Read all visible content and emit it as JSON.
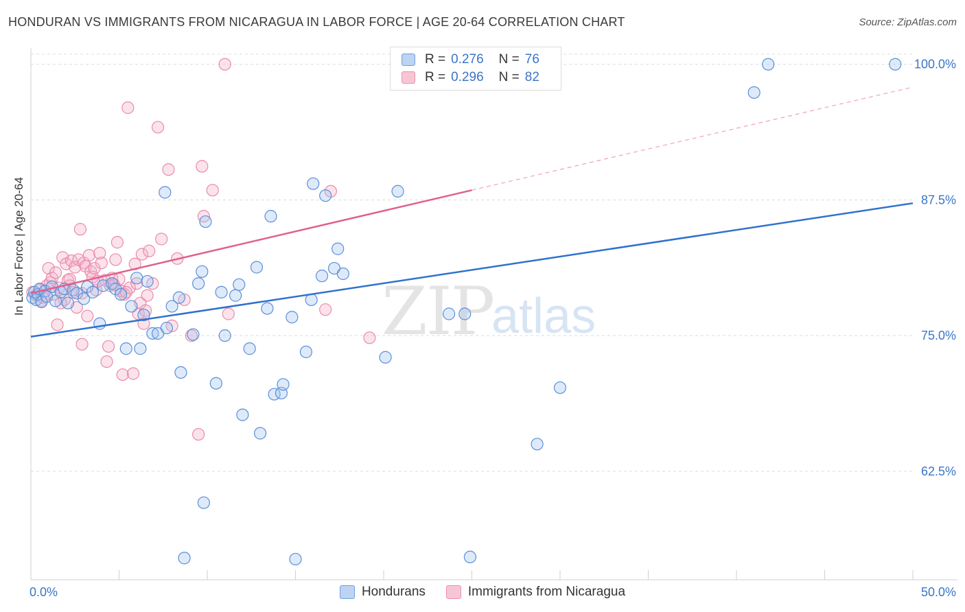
{
  "title": "HONDURAN VS IMMIGRANTS FROM NICARAGUA IN LABOR FORCE | AGE 20-64 CORRELATION CHART",
  "source": "Source: ZipAtlas.com",
  "watermark": {
    "part1": "ZIP",
    "part2": "atlas"
  },
  "legend": {
    "r_label": "R =",
    "n_label": "N =",
    "rows": [
      {
        "r": "0.276",
        "n": "76",
        "fill": "#bcd3f2",
        "stroke": "#6e9fe0"
      },
      {
        "r": "0.296",
        "n": "82",
        "fill": "#f7c6d5",
        "stroke": "#eb8fae"
      }
    ]
  },
  "bottom_legend": [
    {
      "label": "Hondurans",
      "fill": "#bcd3f2",
      "stroke": "#6e9fe0"
    },
    {
      "label": "Immigrants from Nicaragua",
      "fill": "#f7c6d5",
      "stroke": "#eb8fae"
    }
  ],
  "colors": {
    "blue_line": "#2f72cc",
    "pink_line": "#e0608c",
    "blue_point_fill": "rgba(160,194,238,0.35)",
    "blue_point_stroke": "#5b8fd8",
    "pink_point_fill": "rgba(244,176,200,0.35)",
    "pink_point_stroke": "#ea8aab",
    "tick_label": "#3b74c7"
  },
  "chart_data": {
    "type": "scatter",
    "title": "HONDURAN VS IMMIGRANTS FROM NICARAGUA IN LABOR FORCE | AGE 20-64 CORRELATION CHART",
    "xlabel": "",
    "ylabel": "In Labor Force | Age 20-64",
    "xlim": [
      0,
      50
    ],
    "ylim": [
      52.5,
      101.5
    ],
    "x_ticks_labels": [
      "0.0%",
      "50.0%"
    ],
    "y_ticks": [
      62.5,
      75.0,
      87.5,
      100.0
    ],
    "y_tick_labels": [
      "62.5%",
      "75.0%",
      "87.5%",
      "100.0%"
    ],
    "grid": true,
    "legend_position": "top-center",
    "series": [
      {
        "name": "Hondurans",
        "r": 0.276,
        "n": 76,
        "trend": {
          "x": [
            0,
            50
          ],
          "y": [
            74.9,
            87.2
          ]
        },
        "points": [
          [
            0.1,
            78.5
          ],
          [
            0.2,
            79.0
          ],
          [
            0.3,
            78.3
          ],
          [
            0.4,
            78.8
          ],
          [
            0.5,
            79.3
          ],
          [
            0.6,
            78.1
          ],
          [
            0.8,
            79.1
          ],
          [
            0.9,
            78.6
          ],
          [
            1.2,
            79.5
          ],
          [
            1.4,
            78.2
          ],
          [
            1.7,
            79.0
          ],
          [
            1.9,
            79.3
          ],
          [
            2.1,
            78.0
          ],
          [
            2.4,
            79.2
          ],
          [
            2.6,
            78.9
          ],
          [
            3.0,
            78.4
          ],
          [
            3.2,
            79.5
          ],
          [
            3.5,
            79.0
          ],
          [
            3.9,
            76.1
          ],
          [
            4.1,
            79.6
          ],
          [
            4.6,
            79.8
          ],
          [
            4.8,
            79.3
          ],
          [
            5.1,
            78.8
          ],
          [
            5.4,
            73.8
          ],
          [
            5.7,
            77.7
          ],
          [
            6.0,
            80.3
          ],
          [
            6.2,
            73.8
          ],
          [
            6.4,
            76.9
          ],
          [
            6.6,
            80.0
          ],
          [
            6.9,
            75.2
          ],
          [
            7.2,
            75.2
          ],
          [
            7.6,
            88.2
          ],
          [
            7.7,
            75.7
          ],
          [
            8.0,
            77.7
          ],
          [
            8.4,
            78.5
          ],
          [
            8.5,
            71.6
          ],
          [
            9.2,
            75.1
          ],
          [
            9.5,
            79.8
          ],
          [
            9.7,
            80.9
          ],
          [
            9.9,
            85.5
          ],
          [
            10.5,
            70.6
          ],
          [
            10.8,
            79.0
          ],
          [
            11.0,
            75.0
          ],
          [
            11.6,
            78.7
          ],
          [
            11.8,
            79.7
          ],
          [
            12.0,
            67.7
          ],
          [
            12.4,
            73.8
          ],
          [
            12.8,
            81.3
          ],
          [
            13.0,
            66.0
          ],
          [
            13.4,
            77.5
          ],
          [
            13.6,
            86.0
          ],
          [
            13.8,
            69.6
          ],
          [
            14.2,
            69.7
          ],
          [
            14.3,
            70.5
          ],
          [
            14.8,
            76.7
          ],
          [
            15.0,
            54.4
          ],
          [
            15.6,
            73.5
          ],
          [
            15.9,
            78.3
          ],
          [
            16.0,
            89.0
          ],
          [
            16.5,
            80.5
          ],
          [
            16.7,
            87.9
          ],
          [
            17.2,
            81.2
          ],
          [
            17.4,
            83.0
          ],
          [
            17.7,
            80.7
          ],
          [
            20.1,
            73.0
          ],
          [
            20.8,
            88.3
          ],
          [
            23.7,
            77.0
          ],
          [
            24.6,
            77.0
          ],
          [
            24.9,
            54.6
          ],
          [
            26.2,
            98.4
          ],
          [
            28.7,
            65.0
          ],
          [
            30.0,
            70.2
          ],
          [
            8.7,
            54.5
          ],
          [
            9.8,
            59.6
          ],
          [
            41.0,
            97.4
          ],
          [
            41.8,
            100.0
          ],
          [
            49.0,
            100.0
          ]
        ]
      },
      {
        "name": "Immigrants from Nicaragua",
        "r": 0.296,
        "n": 82,
        "trend": {
          "x": [
            0,
            25
          ],
          "y": [
            78.9,
            88.4
          ]
        },
        "trend_dashed": {
          "x": [
            25,
            50
          ],
          "y": [
            88.4,
            97.9
          ]
        },
        "points": [
          [
            0.1,
            79.0
          ],
          [
            0.3,
            78.7
          ],
          [
            0.5,
            79.2
          ],
          [
            0.7,
            78.5
          ],
          [
            0.9,
            79.6
          ],
          [
            1.0,
            81.2
          ],
          [
            1.1,
            79.9
          ],
          [
            1.2,
            80.3
          ],
          [
            1.3,
            78.8
          ],
          [
            1.4,
            80.8
          ],
          [
            1.5,
            76.0
          ],
          [
            1.6,
            79.4
          ],
          [
            1.8,
            82.2
          ],
          [
            1.9,
            78.3
          ],
          [
            2.0,
            81.6
          ],
          [
            2.1,
            80.1
          ],
          [
            2.2,
            79.6
          ],
          [
            2.3,
            81.9
          ],
          [
            2.4,
            79.0
          ],
          [
            2.5,
            81.3
          ],
          [
            2.6,
            77.6
          ],
          [
            2.7,
            82.0
          ],
          [
            2.8,
            84.8
          ],
          [
            2.9,
            74.2
          ],
          [
            3.0,
            81.7
          ],
          [
            3.1,
            81.4
          ],
          [
            3.2,
            76.8
          ],
          [
            3.3,
            82.4
          ],
          [
            3.4,
            80.9
          ],
          [
            3.5,
            80.4
          ],
          [
            3.6,
            81.2
          ],
          [
            3.7,
            79.2
          ],
          [
            3.8,
            80.0
          ],
          [
            4.0,
            81.7
          ],
          [
            4.2,
            80.1
          ],
          [
            4.3,
            72.6
          ],
          [
            4.4,
            74.0
          ],
          [
            4.5,
            79.6
          ],
          [
            4.6,
            80.3
          ],
          [
            4.8,
            82.0
          ],
          [
            4.9,
            83.6
          ],
          [
            5.0,
            80.2
          ],
          [
            5.1,
            79.1
          ],
          [
            5.2,
            71.4
          ],
          [
            5.3,
            78.8
          ],
          [
            5.5,
            96.0
          ],
          [
            5.6,
            79.4
          ],
          [
            5.8,
            71.5
          ],
          [
            5.9,
            81.6
          ],
          [
            6.0,
            79.8
          ],
          [
            6.1,
            77.0
          ],
          [
            6.2,
            78.0
          ],
          [
            6.3,
            82.5
          ],
          [
            6.4,
            76.1
          ],
          [
            6.6,
            78.7
          ],
          [
            6.7,
            82.8
          ],
          [
            6.9,
            79.8
          ],
          [
            7.2,
            94.2
          ],
          [
            7.4,
            83.9
          ],
          [
            7.8,
            90.3
          ],
          [
            8.0,
            75.9
          ],
          [
            8.3,
            82.1
          ],
          [
            8.7,
            78.3
          ],
          [
            9.1,
            75.0
          ],
          [
            9.5,
            65.9
          ],
          [
            9.7,
            90.6
          ],
          [
            9.8,
            86.0
          ],
          [
            10.3,
            88.4
          ],
          [
            11.2,
            77.0
          ],
          [
            11.0,
            100.0
          ],
          [
            16.7,
            77.4
          ],
          [
            17.0,
            88.3
          ],
          [
            19.2,
            74.8
          ],
          [
            20.9,
            100.0
          ],
          [
            2.9,
            78.9
          ],
          [
            4.7,
            79.7
          ],
          [
            6.5,
            77.3
          ],
          [
            3.9,
            82.6
          ],
          [
            1.7,
            78.0
          ],
          [
            0.6,
            78.2
          ],
          [
            2.2,
            80.2
          ],
          [
            5.4,
            79.0
          ]
        ]
      }
    ]
  }
}
